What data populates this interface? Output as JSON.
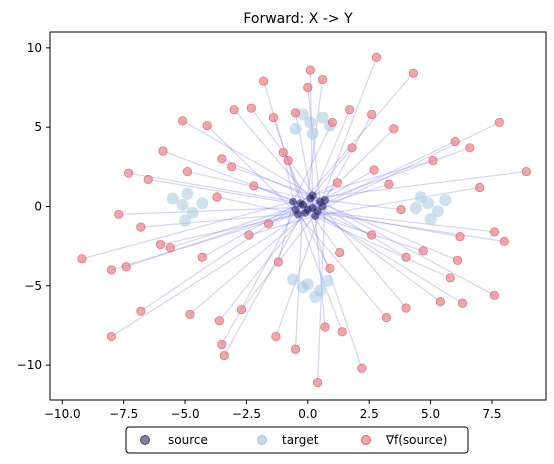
{
  "chart_data": {
    "type": "scatter",
    "title": "Forward: X -> Y",
    "xlabel": "",
    "ylabel": "",
    "xlim": [
      -10.5,
      9.7
    ],
    "ylim": [
      -12.2,
      11.0
    ],
    "xticks": [
      -10.0,
      -7.5,
      -5.0,
      -2.5,
      0.0,
      2.5,
      5.0,
      7.5
    ],
    "xtick_labels": [
      "−10.0",
      "−7.5",
      "−5.0",
      "−2.5",
      "0.0",
      "2.5",
      "5.0",
      "7.5"
    ],
    "yticks": [
      -10,
      -5,
      0,
      5,
      10
    ],
    "ytick_labels": [
      "−10",
      "−5",
      "0",
      "5",
      "10"
    ],
    "grid": false,
    "legend_position": "bottom-center",
    "colors": {
      "source": "#1a1a4d",
      "target": "#a6c8e0",
      "gradient": "#f08080",
      "line": "#8080ff"
    },
    "series": [
      {
        "name": "source",
        "description": "dense cluster near origin",
        "points": [
          [
            0.2,
            -0.1
          ],
          [
            -0.3,
            0.2
          ],
          [
            0.5,
            0.3
          ],
          [
            -0.1,
            -0.4
          ],
          [
            0.4,
            -0.3
          ],
          [
            -0.5,
            -0.2
          ],
          [
            0.1,
            0.5
          ],
          [
            0.6,
            0.0
          ],
          [
            -0.2,
            0.1
          ],
          [
            0.3,
            -0.6
          ],
          [
            -0.6,
            0.3
          ],
          [
            0.0,
            -0.2
          ],
          [
            0.7,
            0.4
          ],
          [
            -0.4,
            -0.5
          ],
          [
            0.2,
            0.7
          ]
        ]
      },
      {
        "name": "target",
        "description": "four Gaussian clusters",
        "points": [
          [
            0.1,
            5.3
          ],
          [
            -0.5,
            4.9
          ],
          [
            0.6,
            5.6
          ],
          [
            0.2,
            4.6
          ],
          [
            -0.2,
            5.8
          ],
          [
            0.9,
            5.1
          ],
          [
            -5.1,
            0.1
          ],
          [
            -4.7,
            -0.4
          ],
          [
            -5.5,
            0.5
          ],
          [
            -4.3,
            0.2
          ],
          [
            -5.0,
            -0.9
          ],
          [
            -4.9,
            0.8
          ],
          [
            4.9,
            0.2
          ],
          [
            5.3,
            -0.3
          ],
          [
            4.6,
            0.6
          ],
          [
            5.6,
            0.4
          ],
          [
            5.0,
            -0.8
          ],
          [
            4.4,
            -0.1
          ],
          [
            0.0,
            -4.9
          ],
          [
            0.5,
            -5.3
          ],
          [
            -0.6,
            -4.6
          ],
          [
            0.3,
            -5.7
          ],
          [
            -0.2,
            -5.1
          ],
          [
            0.8,
            -4.7
          ]
        ]
      },
      {
        "name": "∇f(source)",
        "description": "scattered transported points",
        "points": [
          [
            0.1,
            8.6
          ],
          [
            -1.8,
            7.9
          ],
          [
            0.0,
            7.5
          ],
          [
            0.6,
            8.0
          ],
          [
            2.8,
            9.4
          ],
          [
            4.3,
            8.4
          ],
          [
            -3.0,
            6.1
          ],
          [
            -2.3,
            6.2
          ],
          [
            -1.4,
            5.6
          ],
          [
            -0.5,
            5.9
          ],
          [
            1.0,
            5.3
          ],
          [
            1.7,
            6.1
          ],
          [
            2.6,
            5.8
          ],
          [
            -4.1,
            5.1
          ],
          [
            -5.1,
            5.4
          ],
          [
            3.5,
            4.9
          ],
          [
            -5.9,
            3.5
          ],
          [
            -3.5,
            3.0
          ],
          [
            6.0,
            4.1
          ],
          [
            7.8,
            5.3
          ],
          [
            6.6,
            3.7
          ],
          [
            8.9,
            2.2
          ],
          [
            -7.3,
            2.1
          ],
          [
            -6.5,
            1.7
          ],
          [
            7.0,
            1.2
          ],
          [
            -9.2,
            -3.3
          ],
          [
            -8.0,
            -4.0
          ],
          [
            -7.4,
            -3.8
          ],
          [
            -6.0,
            -2.4
          ],
          [
            -4.3,
            -3.2
          ],
          [
            -8.0,
            -8.2
          ],
          [
            -6.8,
            -6.6
          ],
          [
            -4.8,
            -6.8
          ],
          [
            -3.6,
            -7.2
          ],
          [
            -2.7,
            -6.5
          ],
          [
            -3.5,
            -8.7
          ],
          [
            -3.4,
            -9.4
          ],
          [
            -1.3,
            -8.2
          ],
          [
            -0.5,
            -9.0
          ],
          [
            0.7,
            -7.6
          ],
          [
            1.4,
            -7.9
          ],
          [
            2.2,
            -10.2
          ],
          [
            0.4,
            -11.1
          ],
          [
            3.2,
            -7.0
          ],
          [
            4.0,
            -6.4
          ],
          [
            5.4,
            -6.0
          ],
          [
            6.3,
            -6.1
          ],
          [
            7.6,
            -5.6
          ],
          [
            5.8,
            -4.5
          ],
          [
            7.6,
            -1.6
          ],
          [
            8.0,
            -2.2
          ],
          [
            6.1,
            -3.4
          ],
          [
            4.0,
            -3.2
          ],
          [
            2.6,
            -1.8
          ],
          [
            -2.4,
            -1.8
          ],
          [
            -1.2,
            -3.5
          ],
          [
            1.3,
            -2.9
          ],
          [
            -3.1,
            2.5
          ],
          [
            2.7,
            2.3
          ],
          [
            5.1,
            2.9
          ],
          [
            3.3,
            1.4
          ],
          [
            -2.2,
            1.3
          ],
          [
            -4.9,
            2.2
          ],
          [
            -6.8,
            -1.3
          ],
          [
            6.2,
            -1.9
          ],
          [
            -1.0,
            3.4
          ],
          [
            1.8,
            3.7
          ],
          [
            -7.7,
            -0.5
          ],
          [
            -5.6,
            -2.6
          ],
          [
            4.7,
            -2.8
          ],
          [
            0.9,
            -3.9
          ],
          [
            -0.8,
            2.9
          ],
          [
            3.8,
            -0.2
          ],
          [
            -3.7,
            0.6
          ],
          [
            1.2,
            1.5
          ],
          [
            -1.6,
            -1.1
          ]
        ]
      }
    ]
  },
  "legend": {
    "items": [
      "source",
      "target",
      "∇f(source)"
    ]
  }
}
